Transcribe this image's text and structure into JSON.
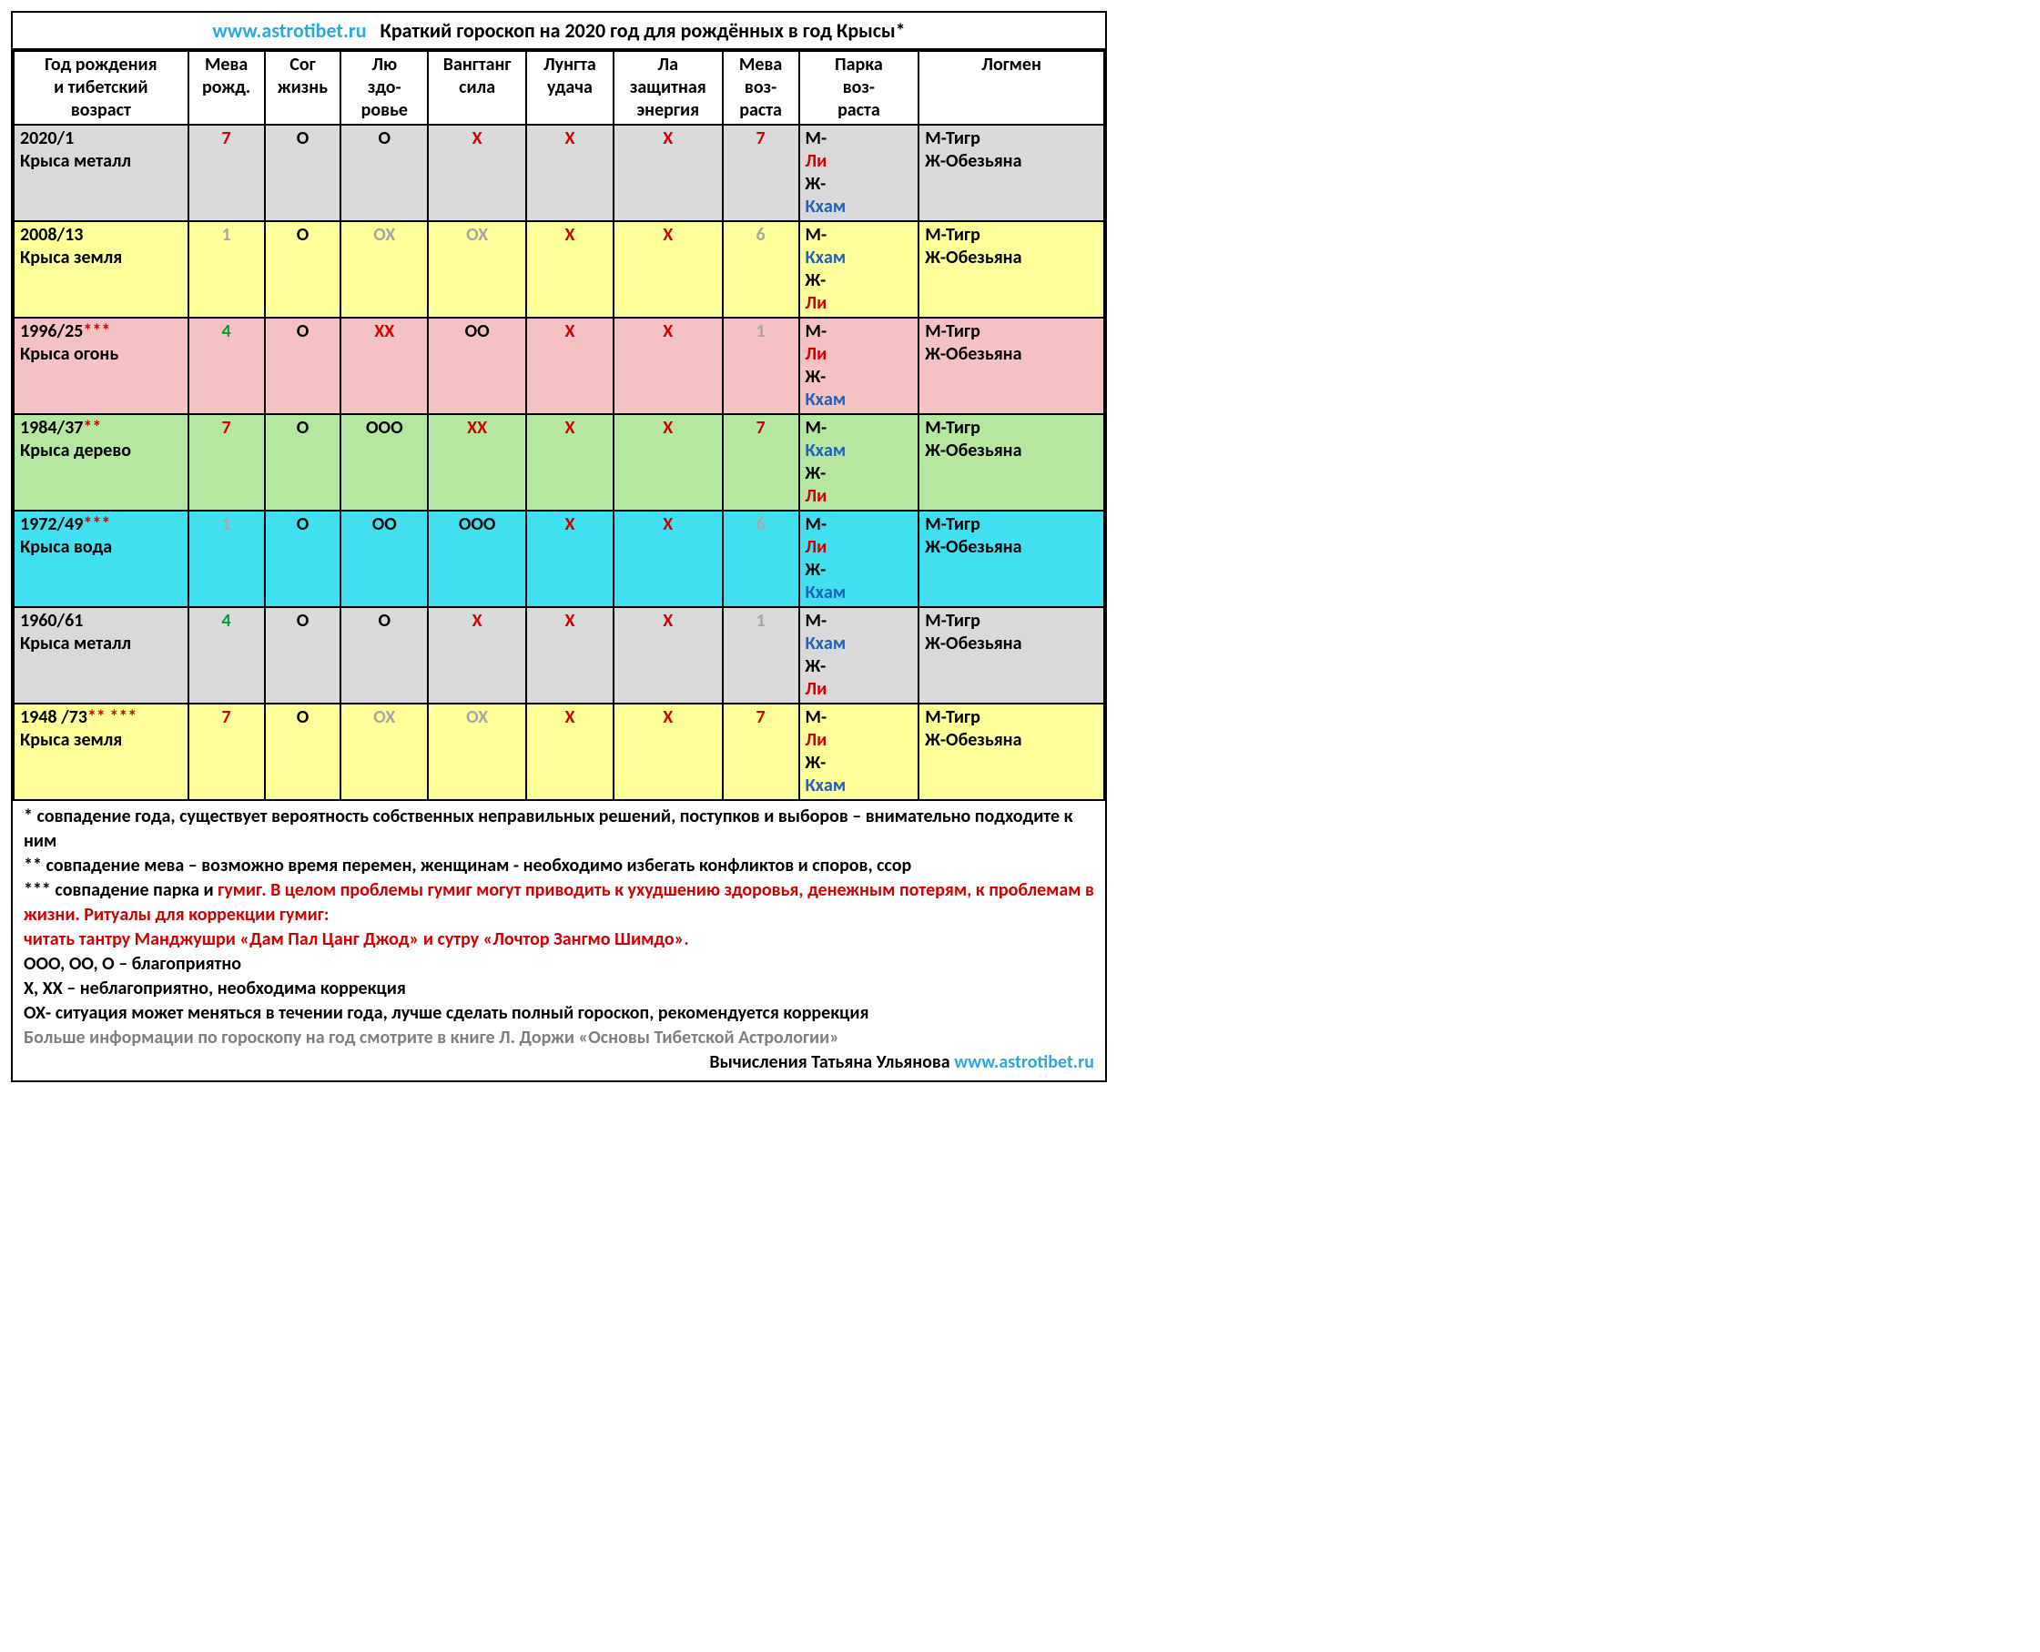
{
  "title": {
    "url": "www.astrotibet.ru",
    "text": "Краткий гороскоп на 2020 год для рождённых в год Крысы*"
  },
  "columns": [
    "Год рождения и тибетский возраст",
    "Мева рожд.",
    "Сог жизнь",
    "Лю здо-ровье",
    "Вангтанг сила",
    "Лунгта удача",
    "Ла защитная энергия",
    "Мева воз-раста",
    "Парка воз-раста",
    "Логмен"
  ],
  "col_header_html": [
    "Год рождения<br>и тибетский<br>возраст",
    "Мева<br>рожд.",
    "Сог<br>жизнь",
    "Лю<br>здо-<br>ровье",
    "Вангтанг<br>сила",
    "Лунгта<br>удача",
    "Ла<br>защитная<br>энергия",
    "Мева<br>воз-<br>раста",
    "Парка<br>воз-<br>раста",
    "Логмен"
  ],
  "rows": [
    {
      "bg": "bg-gray",
      "year_line1_pre": "2020/1",
      "year_line1_red": "",
      "year_line2": "Крыса  металл",
      "meva_birth": {
        "text": "7",
        "color": "#d00000"
      },
      "sog": {
        "text": "О",
        "color": "#000000"
      },
      "lyu": {
        "text": "О",
        "color": "#000000"
      },
      "vang": {
        "text": "Х",
        "color": "#d00000"
      },
      "lung": {
        "text": "Х",
        "color": "#d00000"
      },
      "la": {
        "text": "Х",
        "color": "#d00000"
      },
      "meva_age": {
        "text": "7",
        "color": "#d00000"
      },
      "parka": {
        "m_suffix": "Ли",
        "m_color": "#d00000",
        "f_suffix": "Кхам",
        "f_color": "#1f5fbf"
      },
      "logmen": {
        "m": "М-Тигр",
        "f": "Ж-Обезьяна"
      }
    },
    {
      "bg": "bg-yellow",
      "year_line1_pre": "2008/13",
      "year_line1_red": "",
      "year_line2": "Крыса земля",
      "meva_birth": {
        "text": "1",
        "color": "#a6a6a6"
      },
      "sog": {
        "text": "О",
        "color": "#000000"
      },
      "lyu": {
        "text": "ОХ",
        "color": "#a6a6a6"
      },
      "vang": {
        "text": "ОХ",
        "color": "#a6a6a6"
      },
      "lung": {
        "text": "Х",
        "color": "#d00000"
      },
      "la": {
        "text": "Х",
        "color": "#d00000"
      },
      "meva_age": {
        "text": "6",
        "color": "#a6a6a6"
      },
      "parka": {
        "m_suffix": "Кхам",
        "m_color": "#1f5fbf",
        "f_suffix": "Ли",
        "f_color": "#d00000"
      },
      "logmen": {
        "m": "М-Тигр",
        "f": "Ж-Обезьяна"
      }
    },
    {
      "bg": "bg-pink",
      "year_line1_pre": "1996/25",
      "year_line1_red": "***",
      "year_line2": "Крыса огонь",
      "meva_birth": {
        "text": "4",
        "color": "#009e2f"
      },
      "sog": {
        "text": "О",
        "color": "#000000"
      },
      "lyu": {
        "text": "ХХ",
        "color": "#d00000"
      },
      "vang": {
        "text": "ОО",
        "color": "#000000"
      },
      "lung": {
        "text": "Х",
        "color": "#d00000"
      },
      "la": {
        "text": "Х",
        "color": "#d00000"
      },
      "meva_age": {
        "text": "1",
        "color": "#a6a6a6"
      },
      "parka": {
        "m_suffix": "Ли",
        "m_color": "#d00000",
        "f_suffix": "Кхам",
        "f_color": "#1f5fbf"
      },
      "logmen": {
        "m": "М-Тигр",
        "f": "Ж-Обезьяна"
      }
    },
    {
      "bg": "bg-green",
      "year_line1_pre": "1984/37",
      "year_line1_red": "**",
      "year_line2": "Крыса дерево",
      "meva_birth": {
        "text": "7",
        "color": "#d00000"
      },
      "sog": {
        "text": "О",
        "color": "#000000"
      },
      "lyu": {
        "text": "ООО",
        "color": "#000000"
      },
      "vang": {
        "text": "ХХ",
        "color": "#d00000"
      },
      "lung": {
        "text": "Х",
        "color": "#d00000"
      },
      "la": {
        "text": "Х",
        "color": "#d00000"
      },
      "meva_age": {
        "text": "7",
        "color": "#d00000"
      },
      "parka": {
        "m_suffix": "Кхам",
        "m_color": "#1f5fbf",
        "f_suffix": "Ли",
        "f_color": "#d00000"
      },
      "logmen": {
        "m": "М-Тигр",
        "f": "Ж-Обезьяна"
      }
    },
    {
      "bg": "bg-cyan",
      "year_line1_pre": "1972/49",
      "year_line1_red": "***",
      "year_line2": "Крыса вода",
      "meva_birth": {
        "text": "1",
        "color": "#a6a6a6"
      },
      "sog": {
        "text": "О",
        "color": "#000000"
      },
      "lyu": {
        "text": "ОО",
        "color": "#000000"
      },
      "vang": {
        "text": "ООО",
        "color": "#000000"
      },
      "lung": {
        "text": "Х",
        "color": "#d00000"
      },
      "la": {
        "text": "Х",
        "color": "#d00000"
      },
      "meva_age": {
        "text": "6",
        "color": "#a6a6a6"
      },
      "parka": {
        "m_suffix": "Ли",
        "m_color": "#d00000",
        "f_suffix": "Кхам",
        "f_color": "#1f5fbf"
      },
      "logmen": {
        "m": "М-Тигр",
        "f": "Ж-Обезьяна"
      }
    },
    {
      "bg": "bg-gray",
      "year_line1_pre": "1960/61",
      "year_line1_red": "",
      "year_line2": "Крыса металл",
      "meva_birth": {
        "text": "4",
        "color": "#009e2f"
      },
      "sog": {
        "text": "О",
        "color": "#000000"
      },
      "lyu": {
        "text": "О",
        "color": "#000000"
      },
      "vang": {
        "text": "Х",
        "color": "#d00000"
      },
      "lung": {
        "text": "Х",
        "color": "#d00000"
      },
      "la": {
        "text": "Х",
        "color": "#d00000"
      },
      "meva_age": {
        "text": "1",
        "color": "#a6a6a6"
      },
      "parka": {
        "m_suffix": "Кхам",
        "m_color": "#1f5fbf",
        "f_suffix": "Ли",
        "f_color": "#d00000"
      },
      "logmen": {
        "m": "М-Тигр",
        "f": "Ж-Обезьяна"
      }
    },
    {
      "bg": "bg-yellow",
      "year_line1_pre": "1948 /73",
      "year_line1_red": "** ***",
      "year_line2": "Крыса земля",
      "meva_birth": {
        "text": "7",
        "color": "#d00000"
      },
      "sog": {
        "text": "О",
        "color": "#000000"
      },
      "lyu": {
        "text": "ОХ",
        "color": "#a6a6a6"
      },
      "vang": {
        "text": "ОХ",
        "color": "#a6a6a6"
      },
      "lung": {
        "text": "Х",
        "color": "#d00000"
      },
      "la": {
        "text": "Х",
        "color": "#d00000"
      },
      "meva_age": {
        "text": "7",
        "color": "#d00000"
      },
      "parka": {
        "m_suffix": "Ли",
        "m_color": "#d00000",
        "f_suffix": "Кхам",
        "f_color": "#1f5fbf"
      },
      "logmen": {
        "m": "М-Тигр",
        "f": "Ж-Обезьяна"
      }
    }
  ],
  "notes": {
    "n1": "* совпадение года, существует вероятность собственных неправильных решений, поступков и выборов – внимательно подходите к ним",
    "n2": "** совпадение мева – возможно время перемен, женщинам - необходимо избегать конфликтов и споров, ссор",
    "n3_pre": "*** совпадение парка и ",
    "n3_word": "гумиг",
    "n3_red": ". В целом проблемы гумиг могут приводить к ухудшению здоровья, денежным потерям, к проблемам в жизни. Ритуалы для коррекции гумиг:",
    "n3_red2": "читать тантру Манджушри «Дам Пал Цанг Джод» и сутру «Лочтор Зангмо Шимдо».",
    "n4": "ООО, ОО, О – благоприятно",
    "n5": "Х, ХХ – неблагоприятно, необходима коррекция",
    "n6": "ОХ- ситуация может меняться в течении года, лучше сделать полный гороскоп, рекомендуется коррекция",
    "n7": "Больше информации по гороскопу на год смотрите в книге Л. Доржи «Основы Тибетской Астрологии»",
    "credit_pre": "Вычисления Татьяна Ульянова ",
    "credit_url": "www.astrotibet.ru"
  },
  "col_widths_pct": [
    16,
    7,
    7,
    8,
    9,
    8,
    10,
    7,
    11,
    17
  ]
}
